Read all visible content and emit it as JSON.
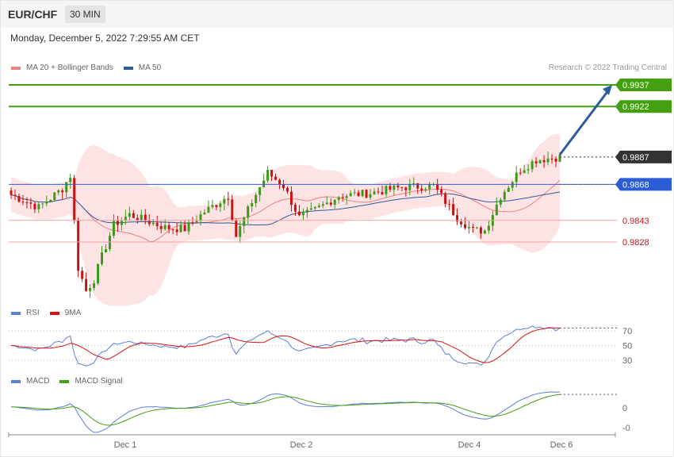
{
  "header": {
    "pair": "EUR/CHF",
    "timeframe": "30 MIN"
  },
  "datetime": "Monday, December 5, 2022 7:29:55 AM CET",
  "copyright": "Research © 2022 Trading Central",
  "legends": {
    "price": [
      {
        "label": "MA 20 + Bollinger Bands",
        "color": "#f08080"
      },
      {
        "label": "MA 50",
        "color": "#2c5c9c"
      }
    ],
    "rsi": [
      {
        "label": "RSI",
        "color": "#5b7fd6"
      },
      {
        "label": "9MA",
        "color": "#dd1111"
      }
    ],
    "macd": [
      {
        "label": "MACD",
        "color": "#5b7fd6"
      },
      {
        "label": "MACD Signal",
        "color": "#44a010"
      }
    ]
  },
  "colors": {
    "up": "#3a9a1a",
    "down": "#cc1111",
    "band_fill": "#fde3e3",
    "resistance": "#44a010",
    "support": "#f1a3a3",
    "pivot": "#2c5cd6",
    "last": "#333333"
  },
  "chart_data": [
    {
      "type": "candlestick",
      "series": [
        {
          "name": "MA 20 + Bollinger Bands"
        },
        {
          "name": "MA 50"
        }
      ],
      "levels": [
        {
          "value": "0.9937",
          "kind": "resistance"
        },
        {
          "value": "0.9922",
          "kind": "resistance"
        },
        {
          "value": "0.9887",
          "kind": "last"
        },
        {
          "value": "0.9868",
          "kind": "pivot"
        },
        {
          "value": "0.9843",
          "kind": "support"
        },
        {
          "value": "0.9828",
          "kind": "support"
        }
      ],
      "x_ticks": [
        "Dec 1",
        "Dec 2",
        "Dec 4",
        "Dec 6"
      ],
      "ylim": [
        0.98,
        0.995
      ],
      "forecast_target": 0.9937
    },
    {
      "type": "line",
      "series": [
        {
          "name": "RSI"
        },
        {
          "name": "9MA"
        }
      ],
      "y_ticks": [
        "70",
        "50",
        "30"
      ],
      "ylim": [
        20,
        80
      ]
    },
    {
      "type": "line",
      "series": [
        {
          "name": "MACD"
        },
        {
          "name": "MACD Signal"
        }
      ],
      "y_ticks": [
        "0",
        "-0"
      ]
    }
  ]
}
